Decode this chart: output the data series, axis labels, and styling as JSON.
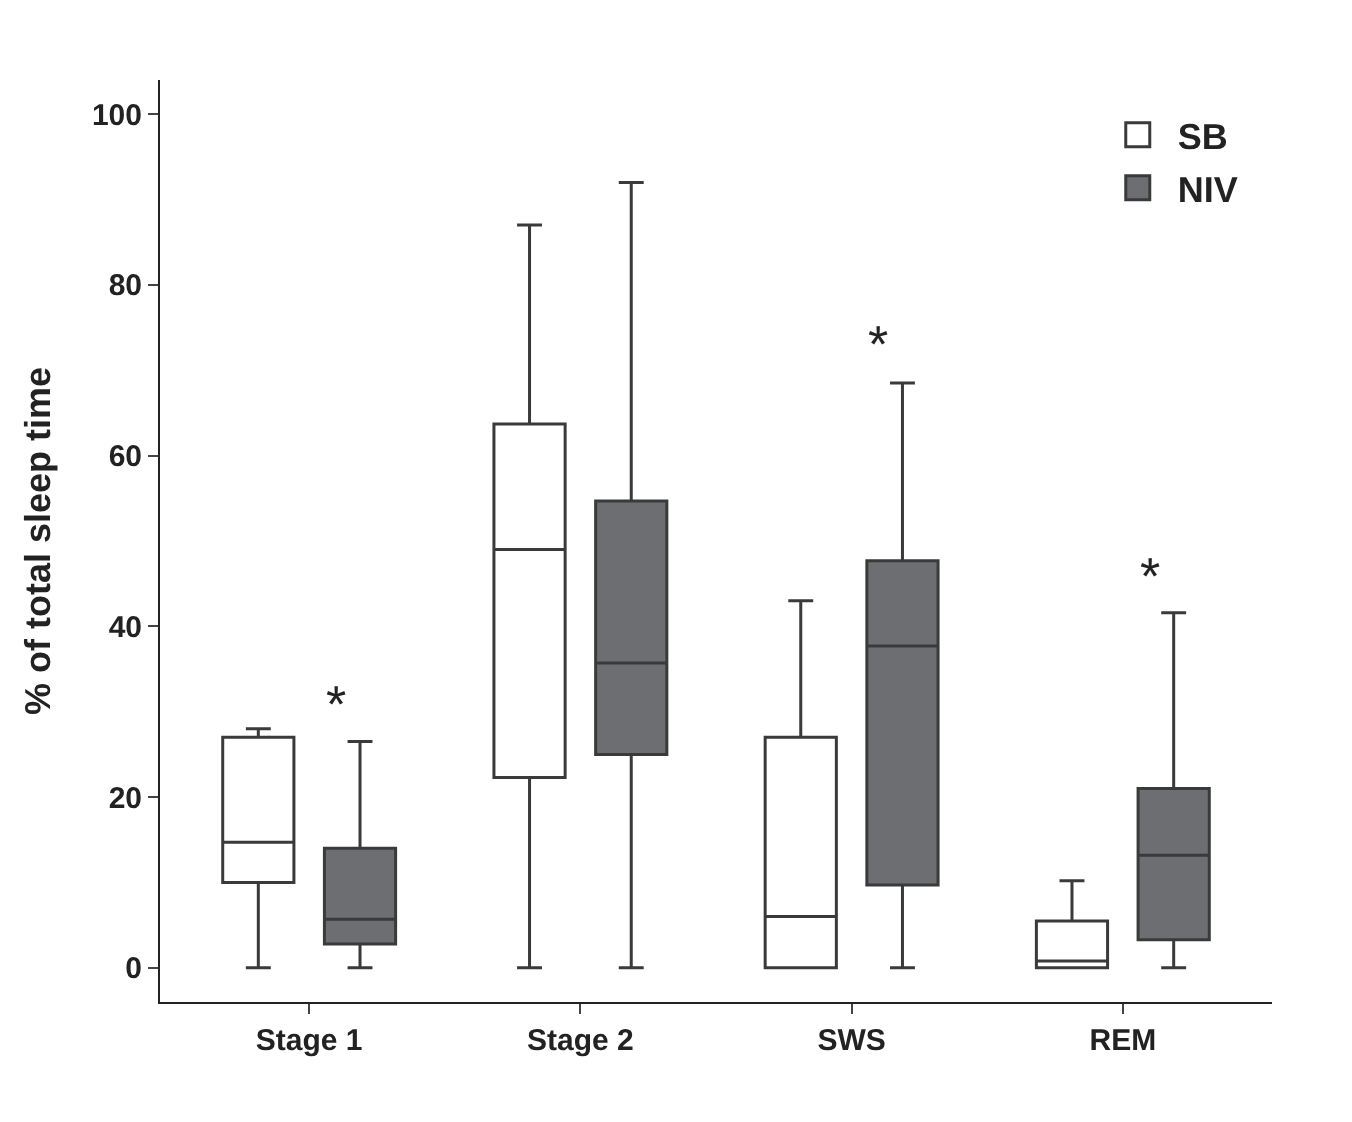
{
  "chart_data": {
    "type": "box",
    "ylabel": "% of total sleep time",
    "categories": [
      "Stage 1",
      "Stage 2",
      "SWS",
      "REM"
    ],
    "series": [
      {
        "name": "SB",
        "color": "#ffffff",
        "boxes": [
          {
            "low": 0,
            "q1": 10,
            "median": 14.7,
            "q3": 27,
            "high": 28
          },
          {
            "low": 0,
            "q1": 22.3,
            "median": 49,
            "q3": 63.7,
            "high": 87
          },
          {
            "low": 0,
            "q1": 0,
            "median": 6,
            "q3": 27,
            "high": 43
          },
          {
            "low": 0,
            "q1": 0,
            "median": 0.8,
            "q3": 5.5,
            "high": 10.2
          }
        ]
      },
      {
        "name": "NIV",
        "color": "#6d6e71",
        "boxes": [
          {
            "low": 0,
            "q1": 2.8,
            "median": 5.7,
            "q3": 14,
            "high": 26.5
          },
          {
            "low": 0,
            "q1": 25,
            "median": 35.7,
            "q3": 54.7,
            "high": 92
          },
          {
            "low": 0,
            "q1": 9.7,
            "median": 37.7,
            "q3": 47.7,
            "high": 68.5
          },
          {
            "low": 0,
            "q1": 3.3,
            "median": 13.2,
            "q3": 21,
            "high": 41.6
          }
        ]
      }
    ],
    "annotations": [
      "*",
      "*",
      "*"
    ],
    "ylim": [
      -4,
      104
    ],
    "yticks": [
      0,
      20,
      40,
      60,
      80,
      100
    ],
    "legend": "top right"
  }
}
